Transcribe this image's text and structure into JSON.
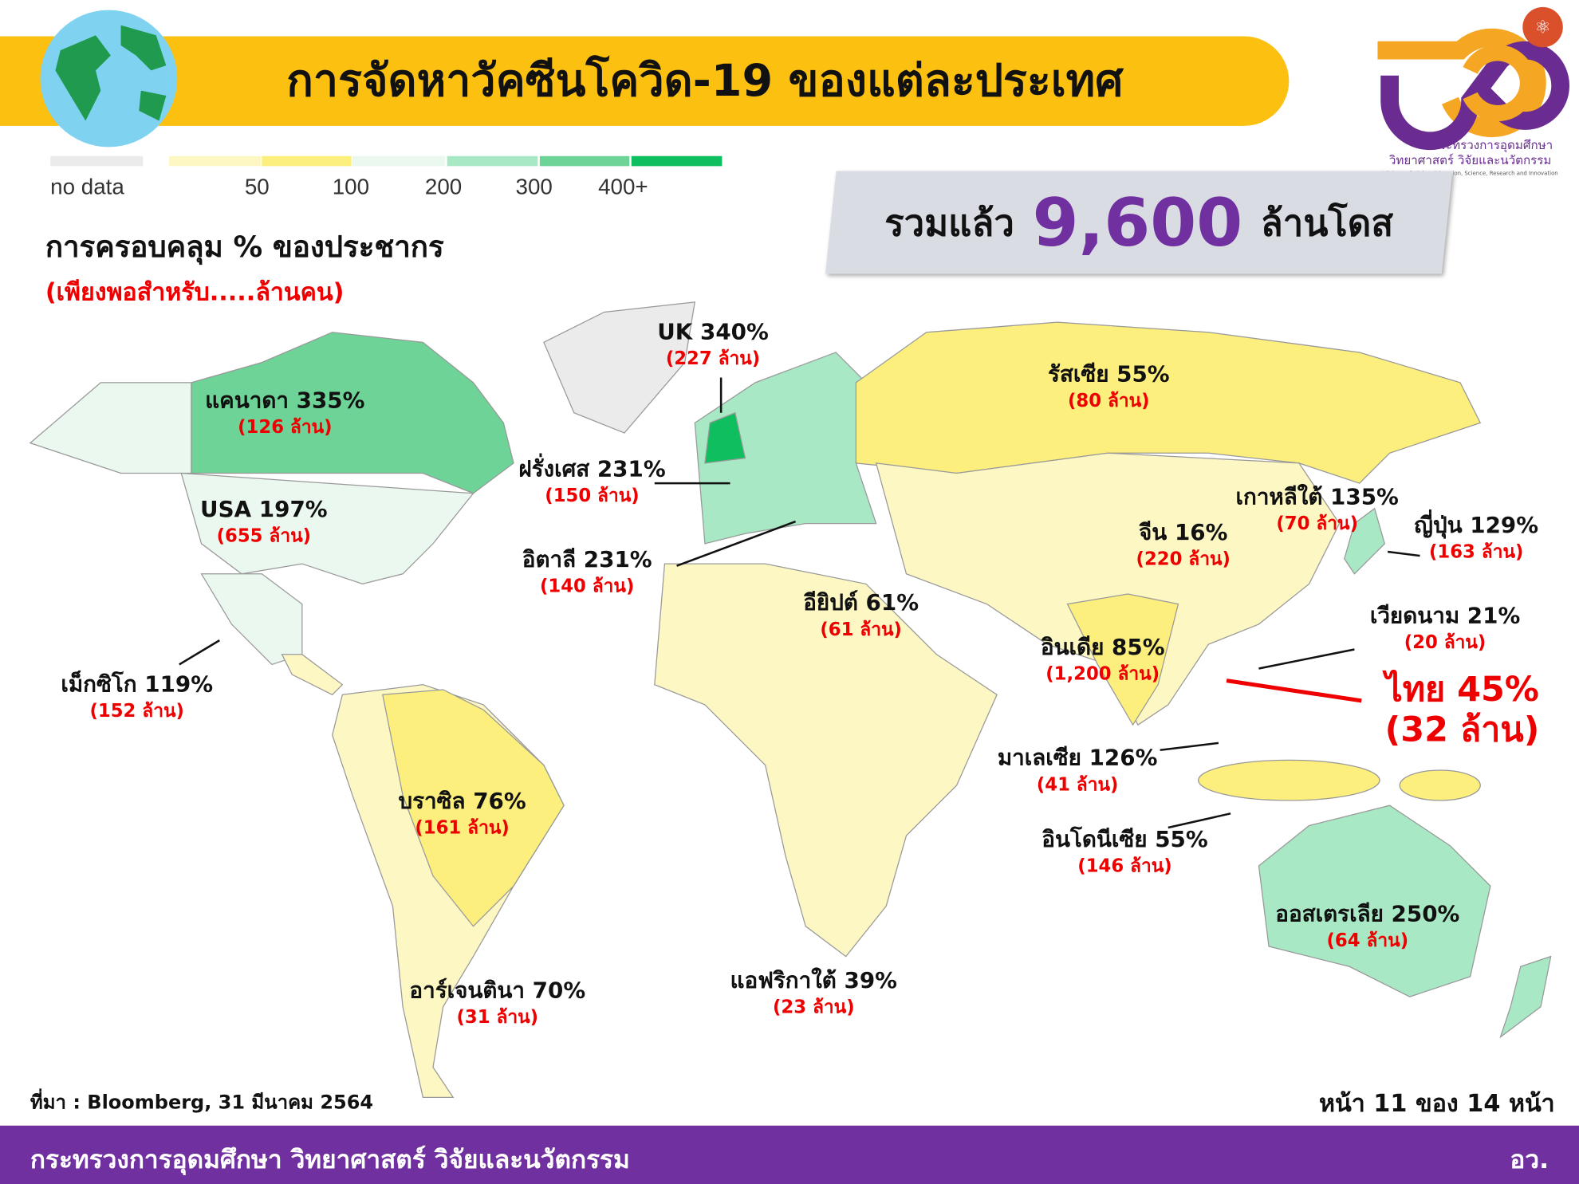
{
  "header": {
    "title": "การจัดหาวัคซีนโควิด-19 ของแต่ละประเทศ"
  },
  "logo": {
    "line1": "กระทรวงการอุดมศึกษา",
    "line2": "วิทยาศาสตร์ วิจัยและนวัตกรรม",
    "line3": "Ministry of Higher Education, Science, Research and Innovation"
  },
  "legend": {
    "items": [
      {
        "label": "no data",
        "color": "#ebebeb"
      },
      {
        "label": "",
        "color": "#fdf7c4"
      },
      {
        "label": "50",
        "color": "#fcef7d"
      },
      {
        "label": "100",
        "color": "#eaf8ef"
      },
      {
        "label": "200",
        "color": "#a8e8c4"
      },
      {
        "label": "300",
        "color": "#6dd396"
      },
      {
        "label": "400+",
        "color": "#0fbe5e"
      }
    ]
  },
  "subtitle": {
    "main": "การครอบคลุม % ของประชากร",
    "note": "(เพียงพอสำหรับ.....ล้านคน)"
  },
  "total": {
    "prefix": "รวมแล้ว",
    "value": "9,600",
    "suffix": "ล้านโดส"
  },
  "countries": [
    {
      "name": "UK 340%",
      "people": "(227 ล้าน)"
    },
    {
      "name": "แคนาดา 335%",
      "people": "(126 ล้าน)"
    },
    {
      "name": "ฝรั่งเศส 231%",
      "people": "(150 ล้าน)"
    },
    {
      "name": "USA 197%",
      "people": "(655 ล้าน)"
    },
    {
      "name": "อิตาลี 231%",
      "people": "(140 ล้าน)"
    },
    {
      "name": "เม็กซิโก 119%",
      "people": "(152 ล้าน)"
    },
    {
      "name": "รัสเซีย 55%",
      "people": "(80 ล้าน)"
    },
    {
      "name": "เกาหลีใต้ 135%",
      "people": "(70 ล้าน)"
    },
    {
      "name": "จีน 16%",
      "people": "(220 ล้าน)"
    },
    {
      "name": "ญี่ปุ่น 129%",
      "people": "(163 ล้าน)"
    },
    {
      "name": "อียิปต์ 61%",
      "people": "(61 ล้าน)"
    },
    {
      "name": "เวียดนาม 21%",
      "people": "(20 ล้าน)"
    },
    {
      "name": "อินเดีย 85%",
      "people": "(1,200 ล้าน)"
    },
    {
      "name": "ไทย 45%",
      "people": "(32 ล้าน)"
    },
    {
      "name": "มาเลเซีย 126%",
      "people": "(41 ล้าน)"
    },
    {
      "name": "บราซิล 76%",
      "people": "(161 ล้าน)"
    },
    {
      "name": "อินโดนีเซีย 55%",
      "people": "(146 ล้าน)"
    },
    {
      "name": "ออสเตรเลีย 250%",
      "people": "(64 ล้าน)"
    },
    {
      "name": "แอฟริกาใต้ 39%",
      "people": "(23 ล้าน)"
    },
    {
      "name": "อาร์เจนตินา 70%",
      "people": "(31 ล้าน)"
    }
  ],
  "source": "ที่มา : Bloomberg, 31 มีนาคม 2564",
  "page": "หน้า 11 ของ 14 หน้า",
  "footer": {
    "left": "กระทรวงการอุดมศึกษา วิทยาศาสตร์ วิจัยและนวัตกรรม",
    "right": "อว."
  }
}
